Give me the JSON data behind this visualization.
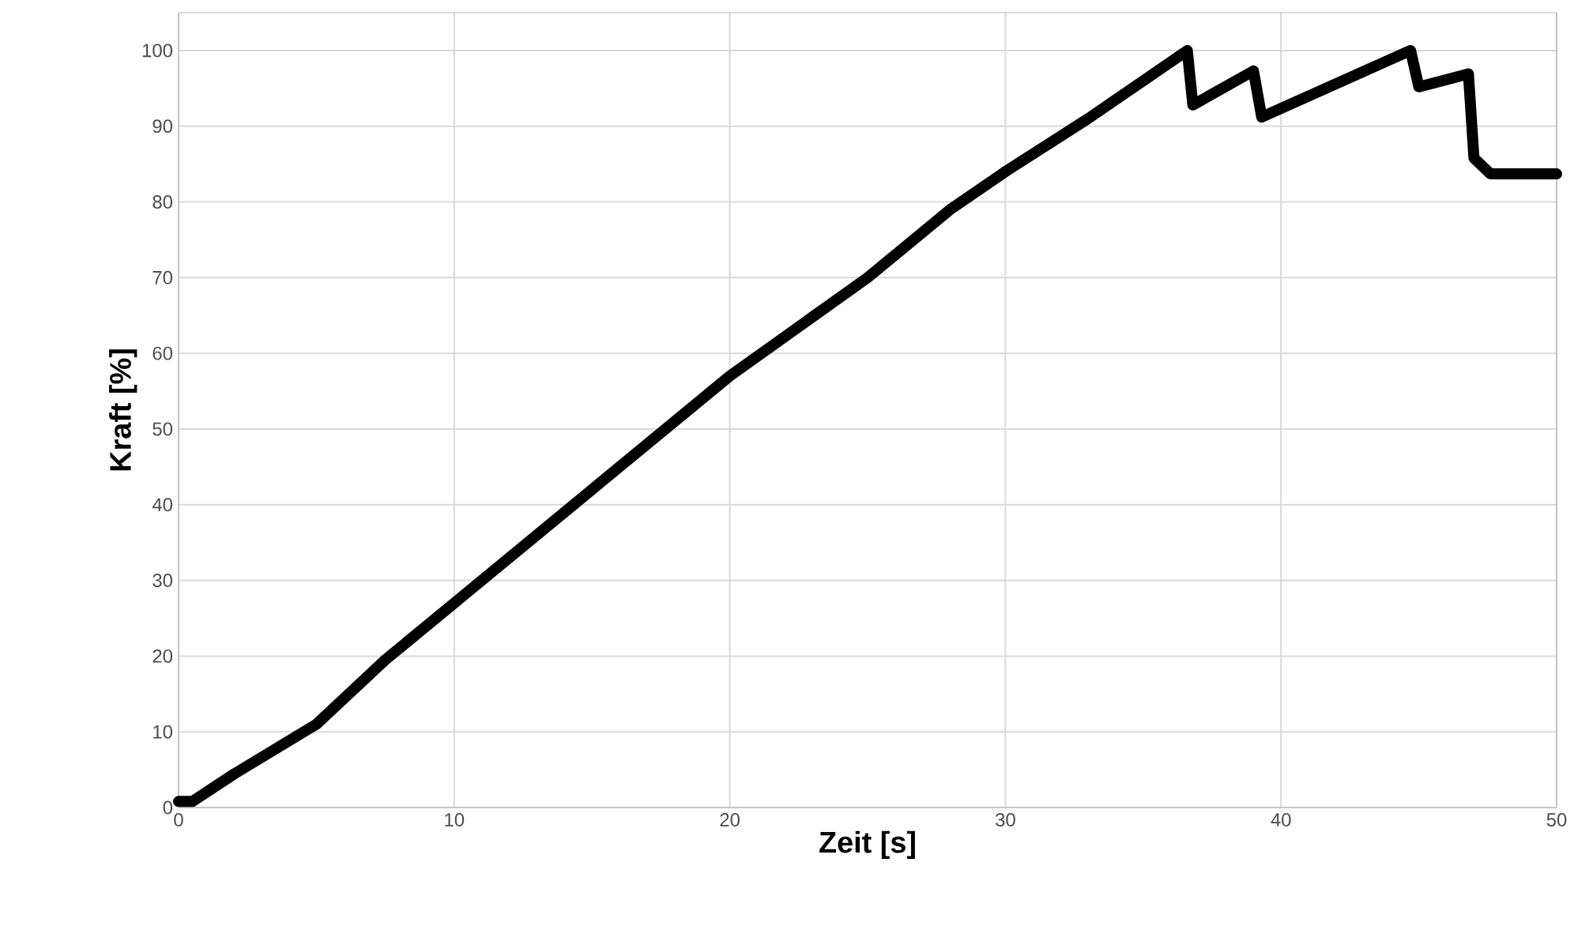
{
  "chart_data": {
    "type": "line",
    "xlabel": "Zeit [s]",
    "ylabel": "Kraft [%]",
    "x": [
      0,
      0.5,
      2,
      5,
      7.5,
      10,
      15,
      20,
      25,
      28,
      30,
      33,
      36.6,
      36.8,
      39.0,
      39.3,
      44.7,
      45.0,
      46.8,
      47.0,
      47.6,
      50
    ],
    "series": [
      {
        "color": "#000000",
        "values": [
          0.8,
          0.8,
          4.4,
          11,
          19.5,
          27,
          42,
          57,
          70,
          79,
          84,
          91,
          100,
          92.8,
          97.3,
          91.2,
          100,
          95.2,
          96.9,
          85.8,
          83.7,
          83.7
        ]
      }
    ],
    "xlim": [
      0,
      50
    ],
    "ylim": [
      0,
      105
    ],
    "xticks": [
      0,
      10,
      20,
      30,
      40,
      50
    ],
    "yticks": [
      0,
      10,
      20,
      30,
      40,
      50,
      60,
      70,
      80,
      90,
      100
    ],
    "grid": true,
    "marker": "none",
    "line_style": "solid"
  }
}
